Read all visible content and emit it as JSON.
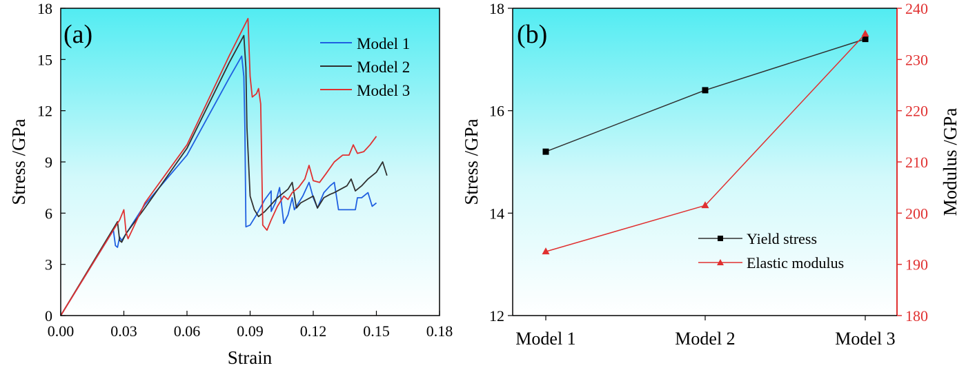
{
  "chart_data": [
    {
      "panel": "(a)",
      "type": "line",
      "xlabel": "Strain",
      "ylabel": "Stress /GPa",
      "xlim": [
        0,
        0.18
      ],
      "ylim": [
        0,
        18
      ],
      "xticks": [
        "0.00",
        "0.03",
        "0.06",
        "0.09",
        "0.12",
        "0.15",
        "0.18"
      ],
      "yticks": [
        "0",
        "3",
        "6",
        "9",
        "12",
        "15",
        "18"
      ],
      "legend": "top-right",
      "series": [
        {
          "name": "Model 1",
          "color": "#1f5fe0",
          "points": [
            [
              0,
              0
            ],
            [
              0.025,
              5.0
            ],
            [
              0.026,
              4.1
            ],
            [
              0.027,
              4.0
            ],
            [
              0.028,
              4.6
            ],
            [
              0.029,
              4.4
            ],
            [
              0.04,
              6.5
            ],
            [
              0.06,
              9.4
            ],
            [
              0.08,
              13.9
            ],
            [
              0.086,
              15.2
            ],
            [
              0.087,
              14.0
            ],
            [
              0.0875,
              11.0
            ],
            [
              0.088,
              5.2
            ],
            [
              0.09,
              5.3
            ],
            [
              0.093,
              5.9
            ],
            [
              0.097,
              6.8
            ],
            [
              0.1,
              7.3
            ],
            [
              0.1,
              6.1
            ],
            [
              0.102,
              6.6
            ],
            [
              0.104,
              7.5
            ],
            [
              0.106,
              5.4
            ],
            [
              0.108,
              5.9
            ],
            [
              0.11,
              6.9
            ],
            [
              0.111,
              6.2
            ],
            [
              0.115,
              7.0
            ],
            [
              0.118,
              7.8
            ],
            [
              0.12,
              6.9
            ],
            [
              0.122,
              6.3
            ],
            [
              0.125,
              7.2
            ],
            [
              0.128,
              7.6
            ],
            [
              0.13,
              7.8
            ],
            [
              0.132,
              6.2
            ],
            [
              0.135,
              6.2
            ],
            [
              0.14,
              6.2
            ],
            [
              0.141,
              6.9
            ],
            [
              0.143,
              6.9
            ],
            [
              0.146,
              7.2
            ],
            [
              0.148,
              6.4
            ],
            [
              0.15,
              6.6
            ]
          ]
        },
        {
          "name": "Model 2",
          "color": "#303030",
          "points": [
            [
              0,
              0
            ],
            [
              0.027,
              5.5
            ],
            [
              0.028,
              4.4
            ],
            [
              0.029,
              4.3
            ],
            [
              0.031,
              4.8
            ],
            [
              0.04,
              6.3
            ],
            [
              0.06,
              9.8
            ],
            [
              0.08,
              14.8
            ],
            [
              0.087,
              16.4
            ],
            [
              0.088,
              14.5
            ],
            [
              0.0885,
              11.0
            ],
            [
              0.09,
              7.0
            ],
            [
              0.092,
              6.2
            ],
            [
              0.094,
              5.8
            ],
            [
              0.097,
              6.1
            ],
            [
              0.1,
              6.5
            ],
            [
              0.103,
              6.9
            ],
            [
              0.106,
              7.2
            ],
            [
              0.108,
              7.4
            ],
            [
              0.11,
              7.8
            ],
            [
              0.112,
              6.3
            ],
            [
              0.114,
              6.6
            ],
            [
              0.117,
              6.8
            ],
            [
              0.12,
              7.0
            ],
            [
              0.122,
              6.3
            ],
            [
              0.125,
              6.9
            ],
            [
              0.128,
              7.1
            ],
            [
              0.13,
              7.2
            ],
            [
              0.133,
              7.4
            ],
            [
              0.136,
              7.6
            ],
            [
              0.138,
              8.0
            ],
            [
              0.14,
              7.3
            ],
            [
              0.143,
              7.6
            ],
            [
              0.146,
              8.0
            ],
            [
              0.15,
              8.4
            ],
            [
              0.153,
              9.0
            ],
            [
              0.155,
              8.2
            ]
          ]
        },
        {
          "name": "Model 3",
          "color": "#e03030",
          "points": [
            [
              0,
              0
            ],
            [
              0.028,
              5.6
            ],
            [
              0.03,
              6.2
            ],
            [
              0.031,
              4.9
            ],
            [
              0.032,
              4.5
            ],
            [
              0.04,
              6.6
            ],
            [
              0.06,
              10.0
            ],
            [
              0.08,
              15.2
            ],
            [
              0.089,
              17.4
            ],
            [
              0.09,
              14.0
            ],
            [
              0.091,
              12.8
            ],
            [
              0.093,
              13.0
            ],
            [
              0.094,
              13.3
            ],
            [
              0.095,
              12.4
            ],
            [
              0.0955,
              9.0
            ],
            [
              0.096,
              5.3
            ],
            [
              0.098,
              5.0
            ],
            [
              0.1,
              5.6
            ],
            [
              0.103,
              6.4
            ],
            [
              0.106,
              7.0
            ],
            [
              0.108,
              6.8
            ],
            [
              0.11,
              7.2
            ],
            [
              0.113,
              7.5
            ],
            [
              0.116,
              8.0
            ],
            [
              0.118,
              8.8
            ],
            [
              0.12,
              7.9
            ],
            [
              0.123,
              7.8
            ],
            [
              0.126,
              8.3
            ],
            [
              0.13,
              9.0
            ],
            [
              0.134,
              9.4
            ],
            [
              0.137,
              9.4
            ],
            [
              0.139,
              10.0
            ],
            [
              0.141,
              9.5
            ],
            [
              0.144,
              9.6
            ],
            [
              0.147,
              10.0
            ],
            [
              0.15,
              10.5
            ]
          ]
        }
      ]
    },
    {
      "panel": "(b)",
      "type": "line",
      "categories": [
        "Model 1",
        "Model 2",
        "Model 3"
      ],
      "ylabel": "Stress /GPa",
      "y2label": "Modulus /GPa",
      "ylim": [
        12,
        18
      ],
      "y2lim": [
        180,
        240
      ],
      "yticks": [
        "12",
        "14",
        "16",
        "18"
      ],
      "y2ticks": [
        "180",
        "190",
        "200",
        "210",
        "220",
        "230",
        "240"
      ],
      "legend": "bottom-right",
      "series": [
        {
          "name": "Yield stress",
          "color": "#303030",
          "marker": "square",
          "axis": "left",
          "values": [
            15.2,
            16.4,
            17.4
          ]
        },
        {
          "name": "Elastic modulus",
          "color": "#e03030",
          "marker": "triangle",
          "axis": "right",
          "values": [
            192.5,
            201.5,
            235.0
          ]
        }
      ]
    }
  ]
}
